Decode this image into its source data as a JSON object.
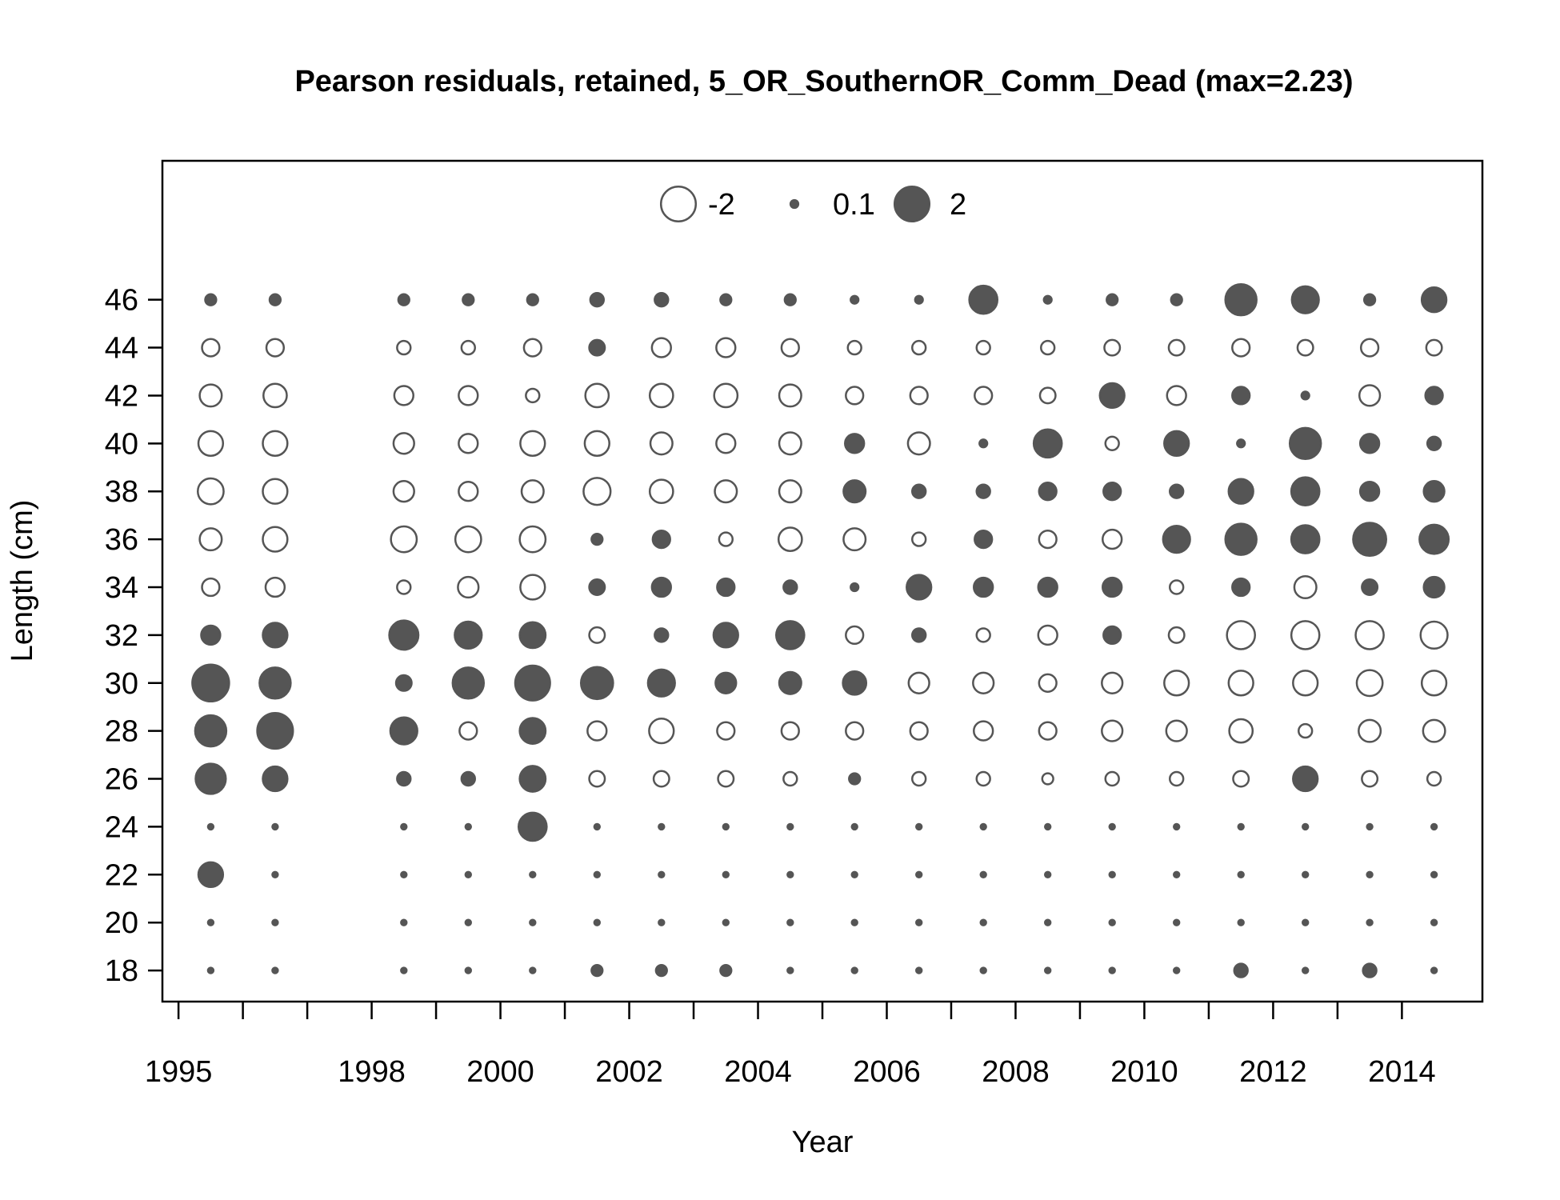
{
  "chart_data": {
    "type": "scatter",
    "subtype": "bubble",
    "title": "Pearson residuals, retained, 5_OR_SouthernOR_Comm_Dead (max=2.23)",
    "xlabel": "Year",
    "ylabel": "Length (cm)",
    "xlim": [
      1994.75,
      2015.25
    ],
    "ylim": [
      16.7,
      51.8
    ],
    "x_ticks": [
      1995,
      1996,
      1997,
      1998,
      1999,
      2000,
      2001,
      2002,
      2003,
      2004,
      2005,
      2006,
      2007,
      2008,
      2009,
      2010,
      2011,
      2012,
      2013,
      2014
    ],
    "x_tick_labels": [
      {
        "value": 1995,
        "label": "1995"
      },
      {
        "value": 1998,
        "label": "1998"
      },
      {
        "value": 2000,
        "label": "2000"
      },
      {
        "value": 2002,
        "label": "2002"
      },
      {
        "value": 2004,
        "label": "2004"
      },
      {
        "value": 2006,
        "label": "2006"
      },
      {
        "value": 2008,
        "label": "2008"
      },
      {
        "value": 2010,
        "label": "2010"
      },
      {
        "value": 2012,
        "label": "2012"
      },
      {
        "value": 2014,
        "label": "2014"
      }
    ],
    "y_ticks": [
      {
        "value": 18,
        "label": "18"
      },
      {
        "value": 20,
        "label": "20"
      },
      {
        "value": 22,
        "label": "22"
      },
      {
        "value": 24,
        "label": "24"
      },
      {
        "value": 26,
        "label": "26"
      },
      {
        "value": 28,
        "label": "28"
      },
      {
        "value": 30,
        "label": "30"
      },
      {
        "value": 32,
        "label": "32"
      },
      {
        "value": 34,
        "label": "34"
      },
      {
        "value": 36,
        "label": "36"
      },
      {
        "value": 38,
        "label": "38"
      },
      {
        "value": 40,
        "label": "40"
      },
      {
        "value": 42,
        "label": "42"
      },
      {
        "value": 44,
        "label": "44"
      },
      {
        "value": 46,
        "label": "46"
      }
    ],
    "legend": {
      "placement": "top-center",
      "entries": [
        {
          "label": "-2",
          "value": -2
        },
        {
          "label": "0.1",
          "value": 0.1
        },
        {
          "label": "2",
          "value": 2
        }
      ]
    },
    "colors": {
      "positive_fill": "#555555",
      "negative_fill": "#ffffff",
      "stroke": "#555555"
    },
    "size_reference_max": 2.23,
    "grid": false,
    "years": [
      1995.5,
      1996.5,
      1998.5,
      1999.5,
      2000.5,
      2001.5,
      2002.5,
      2003.5,
      2004.5,
      2005.5,
      2006.5,
      2007.5,
      2008.5,
      2009.5,
      2010.5,
      2011.5,
      2012.5,
      2013.5,
      2014.5
    ],
    "lengths": [
      18,
      20,
      22,
      24,
      26,
      28,
      30,
      32,
      34,
      36,
      38,
      40,
      42,
      44,
      46
    ],
    "residuals": [
      [
        0.05,
        0.05,
        1.0,
        0.05,
        1.5,
        1.6,
        2.23,
        0.6,
        -0.5,
        -0.8,
        -1.1,
        -1.0,
        -0.8,
        -0.5,
        0.2
      ],
      [
        0.05,
        0.05,
        0.05,
        0.05,
        1.0,
        2.1,
        1.6,
        1.0,
        -0.6,
        -1.0,
        -1.0,
        -1.0,
        -0.9,
        -0.5,
        0.2
      ],
      [
        0.05,
        0.05,
        0.05,
        0.05,
        0.3,
        1.2,
        0.4,
        1.4,
        -0.3,
        -1.1,
        -0.7,
        -0.7,
        -0.6,
        -0.3,
        0.2
      ],
      [
        0.05,
        0.05,
        0.05,
        0.05,
        0.3,
        -0.5,
        1.6,
        1.2,
        -0.7,
        -1.1,
        -0.6,
        -0.6,
        -0.6,
        -0.3,
        0.2
      ],
      [
        0.05,
        0.05,
        0.05,
        1.3,
        1.1,
        1.1,
        2.0,
        1.1,
        -1.0,
        -1.1,
        -0.8,
        -1.0,
        -0.3,
        -0.5,
        0.2
      ],
      [
        0.2,
        0.05,
        0.05,
        0.05,
        -0.4,
        -0.6,
        1.7,
        -0.4,
        0.4,
        0.2,
        -1.2,
        -1.0,
        -0.9,
        0.4,
        0.3
      ],
      [
        0.2,
        0.05,
        0.05,
        0.05,
        -0.4,
        -1.0,
        1.2,
        0.3,
        0.6,
        0.5,
        -0.9,
        -0.8,
        -0.9,
        -0.6,
        0.3
      ],
      [
        0.2,
        0.05,
        0.05,
        0.05,
        -0.4,
        -0.5,
        0.7,
        1.0,
        0.5,
        -0.3,
        -0.8,
        -0.6,
        -0.9,
        -0.6,
        0.2
      ],
      [
        0.05,
        0.05,
        0.05,
        0.05,
        -0.3,
        -0.5,
        0.8,
        1.3,
        0.3,
        -0.9,
        -0.8,
        -0.8,
        -0.8,
        -0.5,
        0.2
      ],
      [
        0.05,
        0.05,
        0.05,
        0.05,
        0.2,
        -0.5,
        0.9,
        -0.5,
        0.1,
        -0.8,
        0.8,
        0.6,
        -0.5,
        -0.3,
        0.1
      ],
      [
        0.05,
        0.05,
        0.05,
        0.05,
        -0.3,
        -0.5,
        -0.7,
        0.3,
        1.0,
        -0.3,
        0.3,
        -0.8,
        -0.5,
        -0.3,
        0.1
      ],
      [
        0.05,
        0.05,
        0.05,
        0.05,
        -0.3,
        -0.6,
        -0.7,
        -0.3,
        0.6,
        0.5,
        0.3,
        0.1,
        -0.5,
        -0.3,
        1.3
      ],
      [
        0.05,
        0.05,
        0.05,
        0.05,
        -0.2,
        -0.5,
        -0.5,
        -0.6,
        0.6,
        -0.5,
        0.5,
        1.3,
        -0.4,
        -0.3,
        0.1
      ],
      [
        0.05,
        0.05,
        0.05,
        0.05,
        -0.3,
        -0.7,
        -0.7,
        0.5,
        0.6,
        -0.6,
        0.5,
        -0.3,
        1.0,
        -0.4,
        0.2
      ],
      [
        0.05,
        0.05,
        0.05,
        0.05,
        -0.3,
        -0.7,
        -1.0,
        -0.4,
        -0.3,
        1.2,
        0.3,
        1.0,
        -0.6,
        -0.4,
        0.2
      ],
      [
        0.3,
        0.05,
        0.05,
        0.05,
        -0.4,
        -0.9,
        -1.0,
        -1.3,
        0.5,
        1.6,
        1.0,
        0.1,
        0.5,
        -0.5,
        1.6
      ],
      [
        0.05,
        0.05,
        0.05,
        0.05,
        1.0,
        -0.3,
        -1.0,
        -1.3,
        -0.8,
        1.3,
        1.3,
        1.6,
        0.1,
        -0.4,
        1.2
      ],
      [
        0.3,
        0.05,
        0.05,
        0.05,
        -0.4,
        -0.8,
        -1.1,
        -1.3,
        0.4,
        1.8,
        0.6,
        0.6,
        -0.7,
        -0.5,
        0.2
      ],
      [
        0.05,
        0.05,
        0.05,
        0.05,
        -0.3,
        -0.8,
        -1.0,
        -1.2,
        0.7,
        1.4,
        0.7,
        0.3,
        0.5,
        -0.4,
        1.0
      ]
    ]
  }
}
